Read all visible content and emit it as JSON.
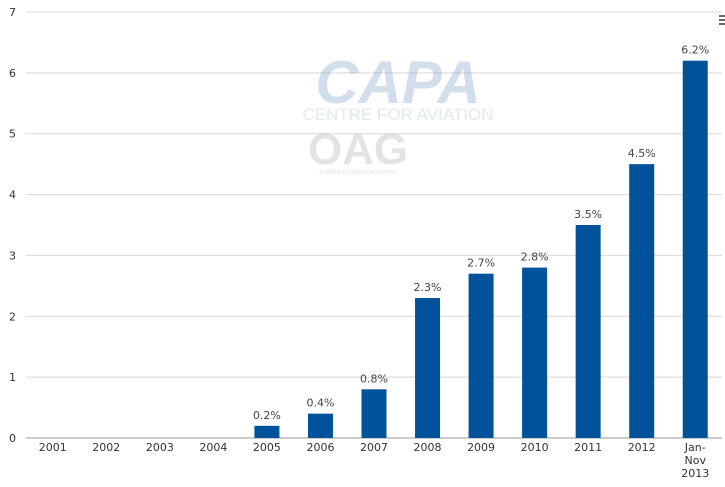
{
  "chart_data": {
    "type": "bar",
    "categories": [
      "2001",
      "2002",
      "2003",
      "2004",
      "2005",
      "2006",
      "2007",
      "2008",
      "2009",
      "2010",
      "2011",
      "2012",
      "Jan-\nNov\n2013"
    ],
    "values": [
      0,
      0,
      0,
      0,
      0.2,
      0.4,
      0.8,
      2.3,
      2.7,
      2.8,
      3.5,
      4.5,
      6.2
    ],
    "data_labels": [
      "",
      "",
      "",
      "",
      "0.2%",
      "0.4%",
      "0.8%",
      "2.3%",
      "2.7%",
      "2.8%",
      "3.5%",
      "4.5%",
      "6.2%"
    ],
    "y_ticks": [
      "0",
      "1",
      "2",
      "3",
      "4",
      "5",
      "6",
      "7"
    ],
    "ylim": [
      0,
      7
    ],
    "grid": true,
    "bar_color": "#00529B"
  },
  "watermark": {
    "capa_logo_text": "CAPA",
    "capa_tagline": "CENTRE FOR AVIATION",
    "oag_logo_text": "OAG",
    "oag_tagline": "a UBM Aviation business"
  },
  "menu": {
    "icon": "menu-icon"
  }
}
